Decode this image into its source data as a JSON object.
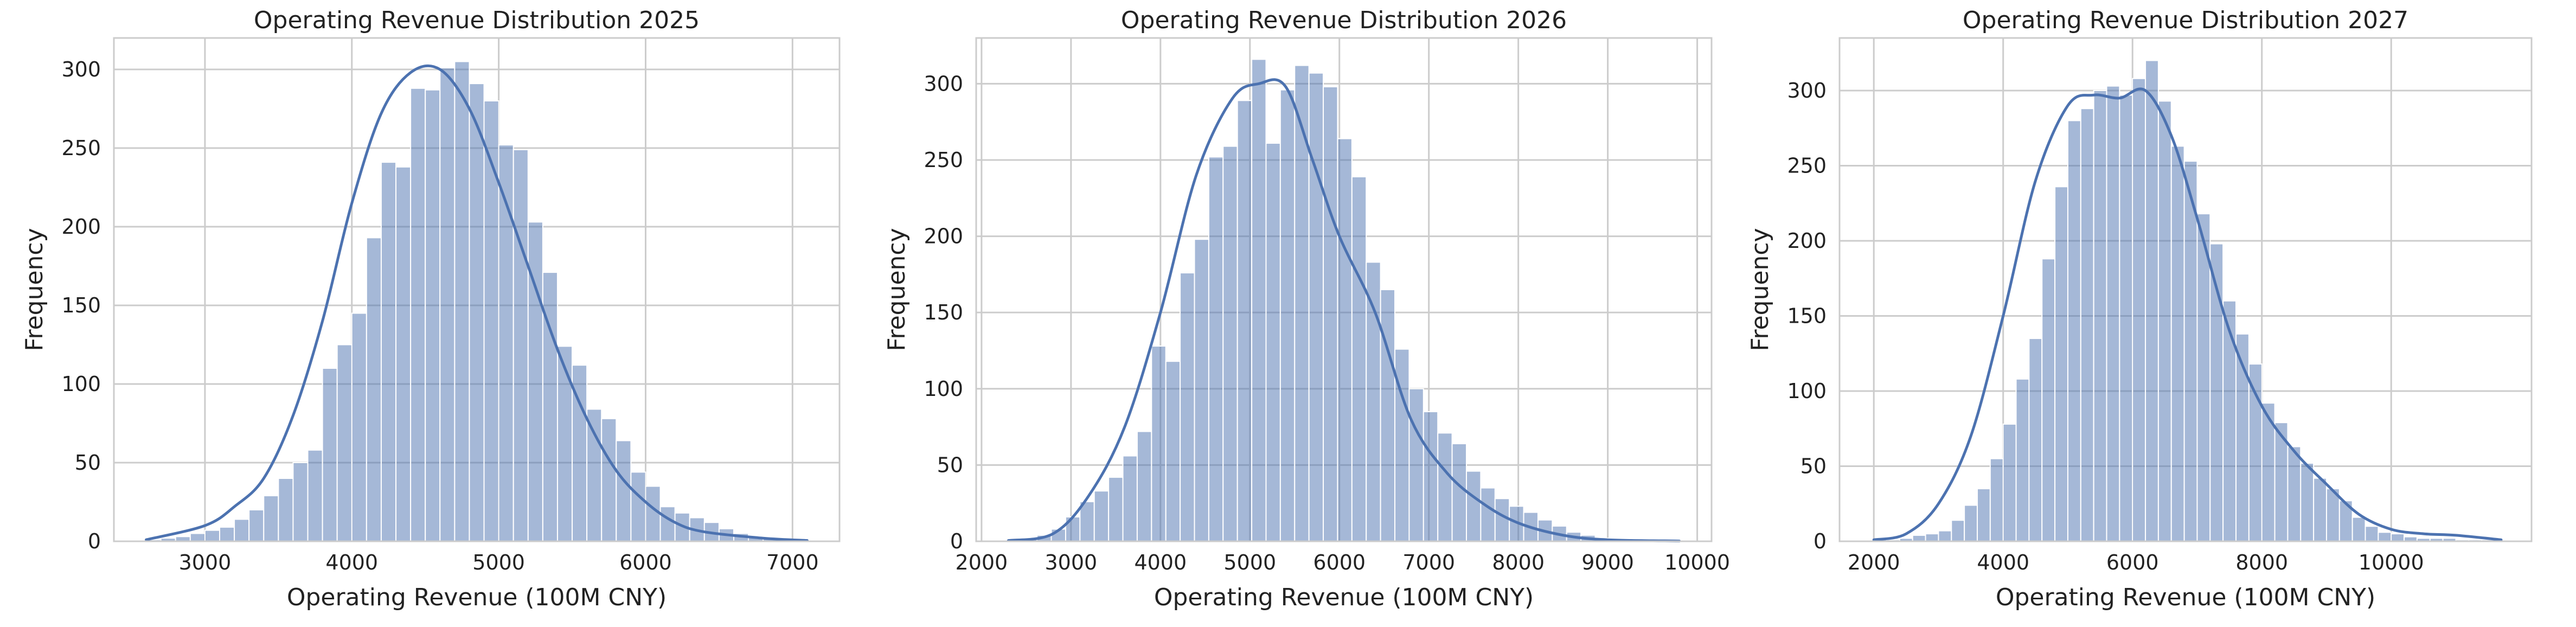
{
  "colors": {
    "bar": "#4c72b0",
    "bar_opacity": 0.5,
    "line": "#4c72b0",
    "grid": "#cccccc"
  },
  "chart_data": [
    {
      "type": "bar",
      "title": "Operating Revenue Distribution 2025",
      "xlabel": "Operating Revenue (100M CNY)",
      "ylabel": "Frequency",
      "xlim": [
        2380,
        7320
      ],
      "ylim": [
        0,
        320
      ],
      "xticks": [
        3000,
        4000,
        5000,
        6000,
        7000
      ],
      "yticks": [
        0,
        50,
        100,
        150,
        200,
        250,
        300
      ],
      "grid": true,
      "bin_start": 2600,
      "bin_width": 100,
      "values": [
        1,
        2,
        3,
        5,
        7,
        9,
        14,
        20,
        29,
        40,
        50,
        58,
        110,
        125,
        145,
        193,
        241,
        238,
        288,
        287,
        301,
        305,
        291,
        280,
        252,
        249,
        203,
        171,
        124,
        112,
        84,
        78,
        64,
        44,
        35,
        22,
        18,
        15,
        12,
        8,
        5,
        3,
        2,
        1,
        1
      ],
      "kde_x": [
        2600,
        3000,
        3200,
        3400,
        3600,
        3800,
        4000,
        4200,
        4400,
        4600,
        4800,
        5000,
        5200,
        5400,
        5600,
        5800,
        6000,
        6200,
        6400,
        6800,
        7100
      ],
      "kde_y": [
        1,
        10,
        22,
        40,
        80,
        140,
        215,
        272,
        298,
        300,
        275,
        228,
        175,
        122,
        78,
        45,
        25,
        12,
        6,
        2,
        0.5
      ]
    },
    {
      "type": "bar",
      "title": "Operating Revenue Distribution 2026",
      "xlabel": "Operating Revenue (100M CNY)",
      "ylabel": "Frequency",
      "xlim": [
        1940,
        10160
      ],
      "ylim": [
        0,
        330
      ],
      "xticks": [
        2000,
        3000,
        4000,
        5000,
        6000,
        7000,
        8000,
        9000,
        10000
      ],
      "yticks": [
        0,
        50,
        100,
        150,
        200,
        250,
        300
      ],
      "grid": true,
      "bin_start": 2300,
      "bin_width": 160,
      "values": [
        1,
        2,
        4,
        8,
        16,
        26,
        33,
        42,
        56,
        72,
        128,
        118,
        176,
        198,
        252,
        259,
        289,
        316,
        261,
        296,
        312,
        307,
        298,
        264,
        239,
        183,
        165,
        126,
        100,
        85,
        71,
        64,
        46,
        35,
        28,
        23,
        19,
        14,
        10,
        6,
        4,
        2,
        1,
        1,
        1,
        0,
        1
      ],
      "kde_x": [
        2300,
        2800,
        3200,
        3600,
        4000,
        4400,
        4800,
        5100,
        5400,
        5700,
        6000,
        6400,
        6800,
        7200,
        7600,
        8000,
        8500,
        9000,
        9800
      ],
      "kde_y": [
        0.5,
        5,
        30,
        75,
        150,
        240,
        290,
        300,
        298,
        250,
        200,
        150,
        80,
        45,
        25,
        12,
        4,
        1,
        0.2
      ]
    },
    {
      "type": "bar",
      "title": "Operating Revenue Distribution 2027",
      "xlabel": "Operating Revenue (100M CNY)",
      "ylabel": "Frequency",
      "xlim": [
        1470,
        12170
      ],
      "ylim": [
        0,
        335
      ],
      "xticks": [
        2000,
        4000,
        6000,
        8000,
        10000
      ],
      "yticks": [
        0,
        50,
        100,
        150,
        200,
        250,
        300
      ],
      "grid": true,
      "bin_start": 2000,
      "bin_width": 200,
      "values": [
        1,
        1,
        2,
        4,
        5,
        7,
        14,
        24,
        35,
        55,
        78,
        108,
        135,
        188,
        236,
        280,
        288,
        300,
        303,
        297,
        308,
        320,
        293,
        263,
        253,
        218,
        198,
        160,
        138,
        118,
        92,
        79,
        63,
        52,
        42,
        35,
        27,
        16,
        10,
        6,
        5,
        3,
        2,
        2,
        2,
        1,
        1,
        1
      ],
      "kde_x": [
        2000,
        2500,
        3000,
        3500,
        4000,
        4500,
        5000,
        5400,
        5800,
        6200,
        6600,
        7000,
        7500,
        8000,
        8500,
        9000,
        9500,
        10000,
        10500,
        11000,
        11700
      ],
      "kde_y": [
        1,
        5,
        25,
        70,
        150,
        240,
        290,
        297,
        295,
        300,
        270,
        215,
        140,
        90,
        60,
        38,
        18,
        8,
        5,
        4,
        1
      ]
    }
  ]
}
